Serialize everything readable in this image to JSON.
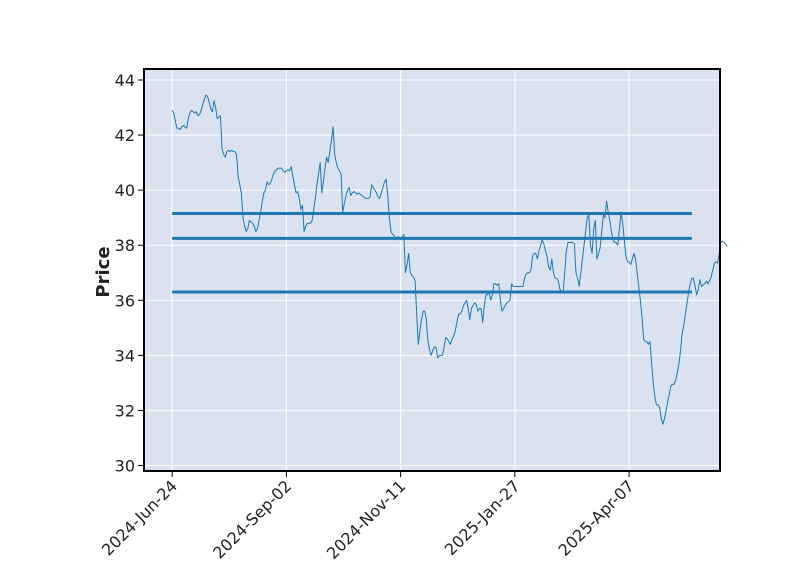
{
  "chart_data": {
    "type": "line",
    "title": "",
    "xlabel": "",
    "ylabel": "Price",
    "x_tick_labels": [
      "2024-Jun-24",
      "2024-Sep-02",
      "2024-Nov-11",
      "2025-Jan-27",
      "2025-Apr-07"
    ],
    "y_ticks": [
      30,
      32,
      34,
      36,
      38,
      40,
      42,
      44
    ],
    "ylim": [
      29.8,
      44.4
    ],
    "xlim": [
      -17.5,
      340.5
    ],
    "x_tick_index": [
      0,
      71,
      142,
      213,
      284
    ],
    "background": "#dbe2ef",
    "grid": true,
    "series": [
      {
        "kind": "price",
        "color": "#1f77b4",
        "values": [
          42.9,
          42.8,
          42.5,
          42.25,
          42.25,
          42.2,
          42.3,
          42.35,
          42.3,
          42.25,
          42.6,
          42.8,
          42.9,
          42.85,
          42.8,
          42.85,
          42.7,
          42.75,
          42.9,
          43.1,
          43.3,
          43.45,
          43.4,
          43.2,
          42.95,
          42.85,
          43.25,
          43.0,
          42.6,
          42.65,
          42.7,
          41.5,
          41.3,
          41.2,
          41.4,
          41.45,
          41.4,
          41.45,
          41.4,
          41.4,
          41.3,
          40.5,
          40.2,
          39.9,
          39.0,
          38.7,
          38.5,
          38.6,
          38.9,
          38.85,
          38.8,
          38.7,
          38.5,
          38.6,
          38.9,
          39.2,
          39.6,
          39.9,
          40.0,
          40.3,
          40.2,
          40.25,
          40.4,
          40.6,
          40.7,
          40.75,
          40.8,
          40.8,
          40.8,
          40.7,
          40.65,
          40.7,
          40.75,
          40.7,
          40.85,
          40.5,
          40.2,
          39.9,
          39.95,
          39.7,
          39.3,
          39.45,
          38.5,
          38.7,
          38.8,
          38.8,
          38.8,
          38.9,
          39.3,
          39.7,
          40.2,
          40.6,
          41.0,
          39.9,
          40.3,
          40.8,
          41.2,
          41.0,
          41.4,
          41.8,
          42.3,
          41.3,
          41.0,
          40.8,
          40.7,
          40.6,
          39.2,
          39.5,
          39.8,
          40.0,
          40.1,
          39.8,
          39.9,
          39.95,
          39.9,
          39.85,
          39.9,
          39.85,
          39.8,
          39.75,
          39.7,
          39.7,
          39.7,
          39.75,
          40.2,
          40.1,
          40.0,
          39.9,
          39.75,
          39.7,
          39.9,
          40.1,
          40.3,
          40.4,
          39.8,
          39.0,
          38.5,
          38.4,
          38.35,
          38.2,
          38.3,
          38.3,
          38.2,
          38.3,
          38.4,
          37.0,
          37.3,
          37.7,
          37.0,
          36.9,
          36.85,
          36.7,
          35.5,
          34.4,
          34.9,
          35.3,
          35.6,
          35.6,
          35.3,
          34.5,
          34.2,
          34.0,
          34.2,
          34.3,
          34.3,
          33.9,
          34.0,
          34.0,
          34.0,
          34.3,
          34.65,
          34.6,
          34.5,
          34.4,
          34.6,
          34.7,
          34.9,
          35.2,
          35.5,
          35.5,
          35.6,
          35.8,
          35.9,
          36.0,
          35.7,
          35.3,
          35.7,
          35.8,
          35.9,
          35.85,
          35.6,
          35.7,
          35.7,
          35.2,
          35.8,
          36.2,
          36.2,
          36.3,
          36.0,
          36.2,
          36.6,
          36.6,
          36.55,
          36.6,
          36.0,
          35.6,
          35.7,
          35.8,
          35.9,
          35.95,
          36.0,
          36.6,
          36.5,
          36.5,
          36.5,
          36.5,
          36.5,
          36.5,
          36.5,
          36.8,
          36.95,
          37.0,
          37.0,
          37.1,
          37.6,
          37.7,
          37.7,
          37.5,
          37.8,
          38.0,
          38.2,
          38.05,
          37.8,
          37.6,
          37.2,
          37.1,
          37.5,
          37.0,
          36.8,
          36.8,
          36.7,
          36.4,
          36.3,
          36.3,
          37.0,
          37.8,
          38.1,
          38.1,
          38.1,
          38.1,
          38.05,
          37.0,
          36.8,
          36.5,
          37.0,
          37.5,
          38.0,
          38.5,
          39.0,
          39.1,
          38.0,
          37.7,
          38.6,
          38.9,
          37.5,
          37.7,
          37.9,
          38.5,
          39.1,
          39.0,
          39.6,
          39.2,
          38.9,
          38.5,
          38.2,
          38.1,
          38.1,
          38.0,
          38.6,
          39.2,
          38.8,
          38.2,
          37.6,
          37.4,
          37.4,
          37.3,
          37.5,
          37.7,
          37.5,
          37.0,
          36.5,
          36.0,
          35.4,
          34.6,
          34.5,
          34.5,
          34.4,
          34.5,
          33.7,
          33.0,
          32.5,
          32.2,
          32.2,
          32.1,
          31.7,
          31.5,
          31.7,
          32.0,
          32.3,
          32.6,
          32.9,
          32.95,
          32.95,
          33.1,
          33.4,
          33.7,
          34.2,
          34.8,
          35.1,
          35.5,
          35.9,
          36.3,
          36.6,
          36.8,
          36.8,
          36.5,
          36.2,
          36.4,
          36.75,
          36.5,
          36.55,
          36.6,
          36.7,
          36.6,
          36.7,
          36.85,
          37.1,
          37.35,
          37.4,
          37.35,
          37.7,
          38.1,
          38.15,
          38.1,
          38.05,
          37.95
        ]
      },
      {
        "kind": "hline",
        "y": 39.15,
        "x_start": 0,
        "x_end": 323,
        "color": "#1f77b4"
      },
      {
        "kind": "hline",
        "y": 38.25,
        "x_start": 0,
        "x_end": 323,
        "color": "#1f77b4"
      },
      {
        "kind": "hline",
        "y": 36.3,
        "x_start": 0,
        "x_end": 323,
        "color": "#1f77b4"
      }
    ]
  }
}
